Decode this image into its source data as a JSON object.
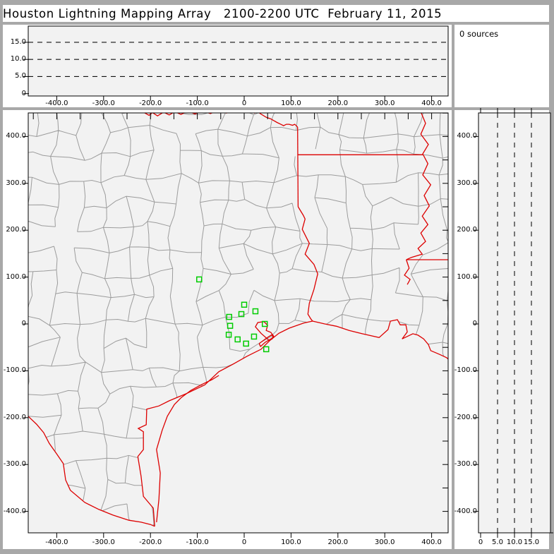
{
  "title": "Houston Lightning Mapping Array   2100-2200 UTC  February 11, 2015",
  "histogram": {
    "label": "0 sources",
    "count": 0
  },
  "colors": {
    "frame_gray": "#a8a8a8",
    "panel_bg": "#f2f2f2",
    "panel_white": "#ffffff",
    "axis_black": "#000000",
    "county_gray": "#9c9c9c",
    "state_red": "#dd0000",
    "station_green": "#00cc00"
  },
  "panels": {
    "alt_ew": {
      "y_ticks": [
        [
          15,
          "15.0"
        ],
        [
          10,
          "10.0"
        ],
        [
          5,
          "5.0"
        ],
        [
          0,
          "0"
        ]
      ],
      "x_ticks": [
        [
          -400,
          "-400.0"
        ],
        [
          -300,
          "-300.0"
        ],
        [
          -200,
          "-200.0"
        ],
        [
          -100,
          "-100.0"
        ],
        [
          0,
          "0"
        ],
        [
          100,
          "100.0"
        ],
        [
          200,
          "200.0"
        ],
        [
          300,
          "300.0"
        ],
        [
          400,
          "400.0"
        ]
      ],
      "dashed_alt_lines": [
        5,
        10,
        15
      ]
    },
    "plan": {
      "x_ticks": [
        [
          -400,
          "-400.0"
        ],
        [
          -300,
          "-300.0"
        ],
        [
          -200,
          "-200.0"
        ],
        [
          -100,
          "-100.0"
        ],
        [
          0,
          "0"
        ],
        [
          100,
          "100.0"
        ],
        [
          200,
          "200.0"
        ],
        [
          300,
          "300.0"
        ],
        [
          400,
          "400.0"
        ]
      ],
      "y_ticks": [
        [
          400,
          "400.0"
        ],
        [
          300,
          "300.0"
        ],
        [
          200,
          "200.0"
        ],
        [
          100,
          "100.0"
        ],
        [
          0,
          "0"
        ],
        [
          -100,
          "-100.0"
        ],
        [
          -200,
          "-200.0"
        ],
        [
          -300,
          "-300.0"
        ],
        [
          -400,
          "-400.0"
        ]
      ],
      "minor_tick_step_km": 50
    },
    "alt_ns": {
      "x_ticks": [
        [
          0,
          "0"
        ],
        [
          5,
          "5.0"
        ],
        [
          10,
          "10.0"
        ],
        [
          15,
          "15.0"
        ]
      ],
      "y_ticks": [
        [
          400,
          "400.0"
        ],
        [
          300,
          "300.0"
        ],
        [
          200,
          "200.0"
        ],
        [
          100,
          "100.0"
        ],
        [
          0,
          "0"
        ],
        [
          -100,
          "-100.0"
        ],
        [
          -200,
          "-200.0"
        ],
        [
          -300,
          "-300.0"
        ],
        [
          -400,
          "-400.0"
        ]
      ],
      "dashed_alt_lines": [
        5,
        10,
        15
      ]
    }
  },
  "chart_data": [
    {
      "id": "alt-vs-east-west",
      "type": "scatter",
      "title": "",
      "x_range": [
        -460,
        435
      ],
      "y_range": [
        0,
        19.7
      ],
      "x_ticks": [
        -400,
        -300,
        -200,
        -100,
        0,
        100,
        200,
        300,
        400
      ],
      "y_ticks": [
        0,
        5,
        10,
        15
      ],
      "y_gridlines_dashed": [
        5,
        10,
        15
      ],
      "points": [],
      "note": "altitude (km) vs east-west distance (km); empty, no sources"
    },
    {
      "id": "source-count-histogram",
      "type": "text",
      "label": "0 sources",
      "count": 0,
      "points": []
    },
    {
      "id": "plan-view-map",
      "type": "scatter",
      "x_range": [
        -460,
        435
      ],
      "y_range": [
        -446,
        450
      ],
      "x_ticks": [
        -400,
        -300,
        -200,
        -100,
        0,
        100,
        200,
        300,
        400
      ],
      "y_ticks": [
        400,
        300,
        200,
        100,
        0,
        -100,
        -200,
        -300,
        -400
      ],
      "points": [],
      "stations_km": [
        [
          -96,
          95
        ],
        [
          0,
          41
        ],
        [
          -6,
          21
        ],
        [
          24,
          27
        ],
        [
          -32,
          15
        ],
        [
          -30,
          -4
        ],
        [
          -33,
          -23
        ],
        [
          -14,
          -33
        ],
        [
          4,
          -42
        ],
        [
          21,
          -27
        ],
        [
          44,
          0
        ],
        [
          47,
          -54
        ]
      ],
      "note": "green squares = LMA station locations; no lightning sources plotted"
    },
    {
      "id": "alt-vs-north-south",
      "type": "scatter",
      "x_range": [
        -0.6,
        20.6
      ],
      "y_range": [
        -446,
        450
      ],
      "x_ticks": [
        0,
        5,
        10,
        15
      ],
      "y_ticks": [
        400,
        300,
        200,
        100,
        0,
        -100,
        -200,
        -300,
        -400
      ],
      "x_gridlines_dashed": [
        5,
        10,
        15
      ],
      "points": []
    }
  ],
  "map_km": {
    "red_river": [
      [
        -215,
        452
      ],
      [
        -203,
        445
      ],
      [
        -196,
        451
      ],
      [
        -185,
        444
      ],
      [
        -172,
        452
      ],
      [
        -160,
        446
      ],
      [
        -148,
        453
      ],
      [
        -135,
        447
      ],
      [
        -120,
        454
      ],
      [
        -105,
        448
      ],
      [
        -90,
        455
      ],
      [
        -72,
        449
      ],
      [
        -55,
        456
      ],
      [
        -38,
        450
      ],
      [
        -20,
        457
      ],
      [
        -5,
        451
      ],
      [
        10,
        456
      ],
      [
        22,
        450
      ],
      [
        28,
        455
      ],
      [
        34,
        449
      ],
      [
        47,
        441
      ],
      [
        56,
        438
      ],
      [
        63,
        434
      ],
      [
        70,
        430
      ],
      [
        78,
        426
      ],
      [
        84,
        423
      ],
      [
        90,
        426
      ],
      [
        96,
        426
      ],
      [
        103,
        424
      ],
      [
        108,
        426
      ],
      [
        114,
        420
      ]
    ],
    "tx_east_border": [
      [
        114,
        420
      ],
      [
        115,
        250
      ]
    ],
    "sabine": [
      [
        115,
        250
      ],
      [
        126,
        232
      ],
      [
        130,
        224
      ],
      [
        124,
        202
      ],
      [
        139,
        172
      ],
      [
        130,
        149
      ],
      [
        149,
        127
      ],
      [
        157,
        107
      ],
      [
        149,
        74
      ],
      [
        139,
        44
      ],
      [
        136,
        21
      ],
      [
        142,
        11
      ],
      [
        146,
        6
      ]
    ],
    "ar_la_33n": [
      [
        115,
        361
      ],
      [
        381,
        361
      ]
    ],
    "mississippi": [
      [
        378,
        450
      ],
      [
        387,
        428
      ],
      [
        377,
        405
      ],
      [
        393,
        383
      ],
      [
        381,
        363
      ],
      [
        392,
        342
      ],
      [
        381,
        318
      ],
      [
        398,
        297
      ],
      [
        384,
        274
      ],
      [
        395,
        252
      ],
      [
        380,
        230
      ],
      [
        392,
        212
      ],
      [
        377,
        194
      ],
      [
        387,
        176
      ],
      [
        371,
        161
      ],
      [
        380,
        149
      ],
      [
        357,
        142
      ],
      [
        346,
        137
      ]
    ],
    "la_ms_31n": [
      [
        346,
        137
      ],
      [
        443,
        137
      ]
    ],
    "miss_tail": [
      [
        346,
        137
      ],
      [
        352,
        119
      ],
      [
        342,
        104
      ],
      [
        354,
        95
      ],
      [
        348,
        84
      ]
    ],
    "coast_east": [
      [
        146,
        6
      ],
      [
        172,
        0
      ],
      [
        197,
        -5
      ],
      [
        224,
        -14
      ],
      [
        252,
        -21
      ],
      [
        288,
        -29
      ],
      [
        307,
        -12
      ],
      [
        312,
        6
      ],
      [
        327,
        9
      ],
      [
        333,
        -2
      ],
      [
        345,
        -2
      ],
      [
        348,
        -17
      ],
      [
        337,
        -32
      ],
      [
        360,
        -21
      ],
      [
        371,
        -24
      ],
      [
        383,
        -32
      ],
      [
        393,
        -44
      ],
      [
        398,
        -57
      ],
      [
        417,
        -65
      ],
      [
        432,
        -72
      ],
      [
        444,
        -83
      ]
    ],
    "coast_west": [
      [
        146,
        6
      ],
      [
        127,
        2
      ],
      [
        96,
        -9
      ],
      [
        74,
        -20
      ],
      [
        54,
        -36
      ],
      [
        36,
        -54
      ],
      [
        6,
        -69
      ],
      [
        -24,
        -86
      ],
      [
        -54,
        -102
      ],
      [
        -84,
        -130
      ],
      [
        -122,
        -148
      ],
      [
        -160,
        -164
      ],
      [
        -182,
        -175
      ],
      [
        -208,
        -182
      ],
      [
        -209,
        -215
      ],
      [
        -226,
        -223
      ],
      [
        -215,
        -230
      ],
      [
        -215,
        -268
      ],
      [
        -227,
        -283
      ],
      [
        -220,
        -325
      ],
      [
        -215,
        -368
      ],
      [
        -194,
        -393
      ],
      [
        -191,
        -432
      ]
    ],
    "rio_grande": [
      [
        -461,
        -197
      ],
      [
        -443,
        -214
      ],
      [
        -428,
        -232
      ],
      [
        -416,
        -255
      ],
      [
        -401,
        -276
      ],
      [
        -386,
        -298
      ],
      [
        -381,
        -333
      ],
      [
        -371,
        -355
      ],
      [
        -340,
        -381
      ],
      [
        -310,
        -396
      ],
      [
        -280,
        -408
      ],
      [
        -246,
        -419
      ],
      [
        -220,
        -423
      ],
      [
        -200,
        -428
      ],
      [
        -191,
        -432
      ]
    ],
    "barrier_island": [
      [
        -187,
        -423
      ],
      [
        -182,
        -374
      ],
      [
        -179,
        -318
      ],
      [
        -187,
        -268
      ],
      [
        -175,
        -227
      ],
      [
        -164,
        -197
      ],
      [
        -149,
        -172
      ],
      [
        -134,
        -157
      ],
      [
        -114,
        -142
      ],
      [
        -92,
        -130
      ],
      [
        -69,
        -119
      ],
      [
        -54,
        -110
      ]
    ],
    "galveston_bay": [
      [
        54,
        -36
      ],
      [
        36,
        -20
      ],
      [
        24,
        -6
      ],
      [
        29,
        3
      ],
      [
        42,
        5
      ],
      [
        50,
        -3
      ],
      [
        47,
        -14
      ],
      [
        57,
        -18
      ],
      [
        63,
        -26
      ],
      [
        59,
        -33
      ]
    ],
    "galveston_island": [
      [
        32,
        -42
      ],
      [
        48,
        -30
      ],
      [
        59,
        -23
      ],
      [
        62,
        -29
      ],
      [
        45,
        -39
      ],
      [
        35,
        -48
      ],
      [
        32,
        -42
      ]
    ]
  }
}
